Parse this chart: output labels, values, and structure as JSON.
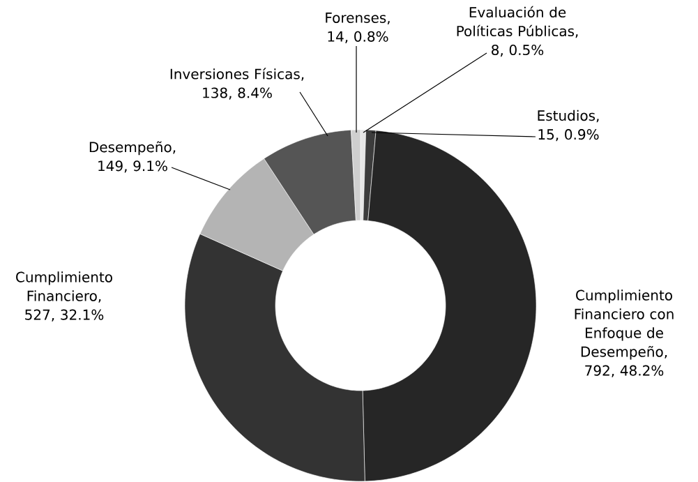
{
  "chart_data": {
    "type": "donut",
    "categories": [
      "Evaluación de Políticas Públicas",
      "Estudios",
      "Cumplimiento Financiero con Enfoque de Desempeño",
      "Cumplimiento Financiero",
      "Desempeño",
      "Inversiones Físicas",
      "Forenses"
    ],
    "values": [
      8,
      15,
      792,
      527,
      149,
      138,
      14
    ],
    "value_labels": [
      ", 8, 0.5%",
      ", 15, 0.9%",
      ", 792, 48.2%",
      ", 527, 32.1%",
      ", 149, 9.1%",
      ", 138, 8.4%",
      ", 14, 0.8%"
    ],
    "colors": [
      "#e6e6e6",
      "#3c3c3c",
      "#262626",
      "#333333",
      "#b4b4b4",
      "#555555",
      "#cfcfcf"
    ]
  }
}
